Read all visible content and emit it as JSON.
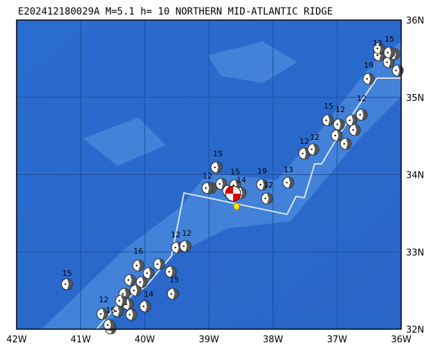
{
  "title": "E202412180029A M=5.1 h= 10 NORTHERN MID-ATLANTIC RIDGE",
  "lon_labels": [
    "42W",
    "41W",
    "40W",
    "39W",
    "38W",
    "37W",
    "36W"
  ],
  "lat_labels": [
    "36N",
    "35N",
    "34N",
    "33N",
    "32N"
  ],
  "events": [
    {
      "depth_label": "15"
    },
    {
      "depth_label": "12"
    },
    {
      "depth_label": "15"
    },
    {
      "depth_label": "14"
    },
    {
      "depth_label": "19"
    },
    {
      "depth_label": "12"
    },
    {
      "depth_label": "13"
    },
    {
      "depth_label": "12"
    },
    {
      "depth_label": "12"
    },
    {
      "depth_label": "15"
    },
    {
      "depth_label": "12"
    },
    {
      "depth_label": "12"
    },
    {
      "depth_label": "19"
    },
    {
      "depth_label": "15"
    },
    {
      "depth_label": "12"
    },
    {
      "depth_label": "15"
    },
    {
      "depth_label": "12"
    },
    {
      "depth_label": "15"
    },
    {
      "depth_label": "12"
    },
    {
      "depth_label": "12"
    },
    {
      "depth_label": "16"
    },
    {
      "depth_label": "15"
    },
    {
      "depth_label": "14"
    }
  ]
}
